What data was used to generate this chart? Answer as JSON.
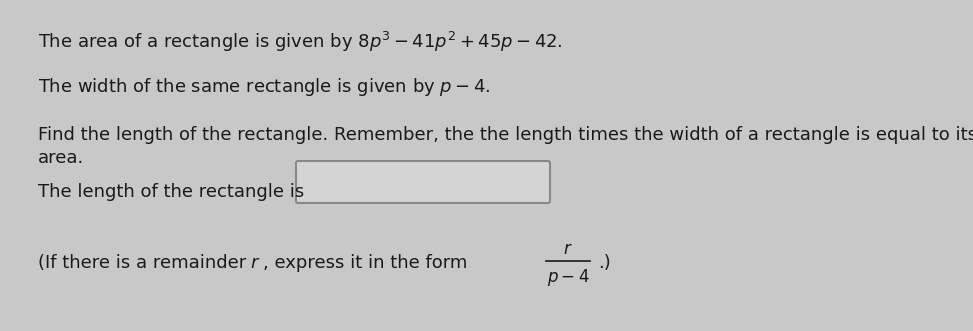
{
  "background_color": "#c8c8c8",
  "text_color": "#1a1a1a",
  "font_size": 13.0,
  "box_face_color": "#d4d4d4",
  "box_edge_color": "#888888",
  "line1": "The area of a rectangle is given by $8p^3 - 41p^2 + 45p - 42.$",
  "line2": "The width of the same rectangle is given by $p - 4.$",
  "line3": "Find the length of the rectangle. Remember, the the length times the width of a rectangle is equal to its",
  "line3b": "area.",
  "line4": "The length of the rectangle is",
  "line5a": "(If there is a remainder ",
  "line5b": ", express it in the form",
  "frac_num": "r",
  "frac_den": "p − 4",
  "line5c": ".)"
}
